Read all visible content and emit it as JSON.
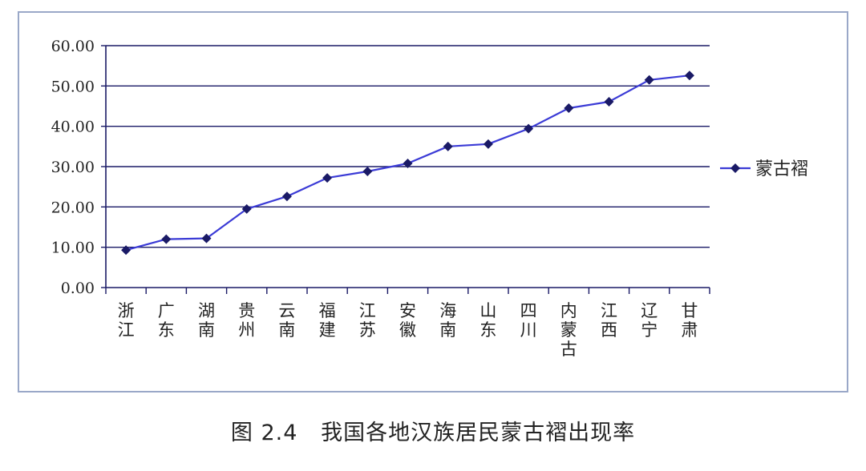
{
  "chart_data": {
    "type": "line",
    "categories": [
      "浙江",
      "广东",
      "湖南",
      "贵州",
      "云南",
      "福建",
      "江苏",
      "安徽",
      "海南",
      "山东",
      "四川",
      "内蒙古",
      "江西",
      "辽宁",
      "甘肃"
    ],
    "series": [
      {
        "name": "蒙古褶",
        "values": [
          9.3,
          12.0,
          12.2,
          19.5,
          22.6,
          27.2,
          28.8,
          30.8,
          35.0,
          35.6,
          39.4,
          44.5,
          46.1,
          51.5,
          52.6
        ]
      }
    ],
    "ylim": [
      0,
      60
    ],
    "yticks": [
      "0.00",
      "10.00",
      "20.00",
      "30.00",
      "40.00",
      "50.00",
      "60.00"
    ],
    "grid": true,
    "legend_position": "right",
    "colors": {
      "line": "#3b3bd6",
      "marker": "#1a1a66",
      "grid": "#1a1a66",
      "axis": "#1a1a66",
      "frame": "#9aa8c8"
    }
  },
  "caption": "图 2.4   我国各地汉族居民蒙古褶出现率"
}
